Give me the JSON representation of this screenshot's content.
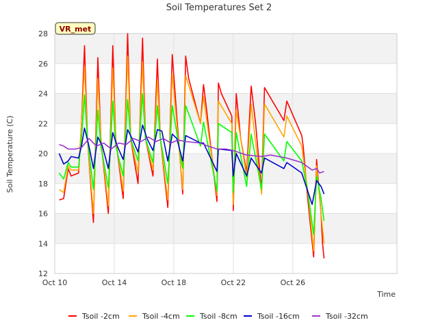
{
  "chart_data": {
    "type": "line",
    "title": "Soil Temperatures Set 2",
    "xlabel": "Time",
    "ylabel": "Soil Temperature (C)",
    "ylim": [
      12,
      28
    ],
    "xlim": [
      0,
      23
    ],
    "badge": "VR_met",
    "x_ticks": [
      {
        "x": 0,
        "label": "Oct 10"
      },
      {
        "x": 4,
        "label": "Oct 14"
      },
      {
        "x": 8,
        "label": "Oct 18"
      },
      {
        "x": 12,
        "label": "Oct 22"
      },
      {
        "x": 16,
        "label": "Oct 26"
      }
    ],
    "y_ticks": [
      12,
      14,
      16,
      18,
      20,
      22,
      24,
      26,
      28
    ],
    "grid": true,
    "background_bands": "alternating grey/white",
    "legend_position": "bottom",
    "series": [
      {
        "name": "Tsoil -2cm",
        "color": "#ff0000",
        "points": [
          [
            0.3,
            16.9
          ],
          [
            0.6,
            17.0
          ],
          [
            0.9,
            19.0
          ],
          [
            1.1,
            18.5
          ],
          [
            1.6,
            18.7
          ],
          [
            1.8,
            22.0
          ],
          [
            2.0,
            27.2
          ],
          [
            2.2,
            21.0
          ],
          [
            2.6,
            15.4
          ],
          [
            2.9,
            26.4
          ],
          [
            3.1,
            21.0
          ],
          [
            3.6,
            16.0
          ],
          [
            3.9,
            27.2
          ],
          [
            4.1,
            21.0
          ],
          [
            4.6,
            17.0
          ],
          [
            4.9,
            28.0
          ],
          [
            5.1,
            21.0
          ],
          [
            5.6,
            18.0
          ],
          [
            5.9,
            27.7
          ],
          [
            6.1,
            21.0
          ],
          [
            6.6,
            18.5
          ],
          [
            6.9,
            26.3
          ],
          [
            7.1,
            21.0
          ],
          [
            7.6,
            16.4
          ],
          [
            7.9,
            26.6
          ],
          [
            8.2,
            22.5
          ],
          [
            8.6,
            17.3
          ],
          [
            8.8,
            26.5
          ],
          [
            9.0,
            25.0
          ],
          [
            9.8,
            22.0
          ],
          [
            10.0,
            24.6
          ],
          [
            10.2,
            23.0
          ],
          [
            10.9,
            16.8
          ],
          [
            11.0,
            24.7
          ],
          [
            11.2,
            24.0
          ],
          [
            11.9,
            22.5
          ],
          [
            12.0,
            16.2
          ],
          [
            12.2,
            24.0
          ],
          [
            12.5,
            21.0
          ],
          [
            12.9,
            18.7
          ],
          [
            13.2,
            24.5
          ],
          [
            13.5,
            22.0
          ],
          [
            13.9,
            17.5
          ],
          [
            14.1,
            24.4
          ],
          [
            15.4,
            22.2
          ],
          [
            15.6,
            23.5
          ],
          [
            16.6,
            21.2
          ],
          [
            16.7,
            20.5
          ],
          [
            17.0,
            17.0
          ],
          [
            17.4,
            13.1
          ],
          [
            17.6,
            19.6
          ],
          [
            17.9,
            16.0
          ],
          [
            18.0,
            14.0
          ],
          [
            18.1,
            13.0
          ]
        ]
      },
      {
        "name": "Tsoil -4cm",
        "color": "#ffa500",
        "points": [
          [
            0.3,
            17.6
          ],
          [
            0.6,
            17.4
          ],
          [
            0.9,
            19.2
          ],
          [
            1.1,
            18.9
          ],
          [
            1.6,
            18.9
          ],
          [
            1.8,
            22.0
          ],
          [
            2.0,
            25.8
          ],
          [
            2.2,
            21.0
          ],
          [
            2.6,
            16.0
          ],
          [
            2.9,
            25.0
          ],
          [
            3.1,
            21.0
          ],
          [
            3.6,
            16.5
          ],
          [
            3.9,
            25.7
          ],
          [
            4.1,
            21.0
          ],
          [
            4.6,
            17.5
          ],
          [
            4.9,
            26.5
          ],
          [
            5.1,
            21.0
          ],
          [
            5.6,
            18.7
          ],
          [
            5.9,
            26.1
          ],
          [
            6.1,
            21.0
          ],
          [
            6.6,
            18.9
          ],
          [
            6.9,
            24.9
          ],
          [
            7.1,
            21.0
          ],
          [
            7.6,
            16.9
          ],
          [
            7.9,
            25.3
          ],
          [
            8.2,
            22.0
          ],
          [
            8.6,
            17.6
          ],
          [
            8.8,
            25.2
          ],
          [
            9.8,
            22.0
          ],
          [
            10.0,
            23.8
          ],
          [
            10.9,
            17.2
          ],
          [
            11.0,
            23.5
          ],
          [
            11.9,
            22.0
          ],
          [
            12.0,
            16.6
          ],
          [
            12.2,
            22.9
          ],
          [
            12.9,
            18.4
          ],
          [
            13.2,
            23.3
          ],
          [
            13.9,
            17.3
          ],
          [
            14.1,
            23.3
          ],
          [
            15.4,
            21.1
          ],
          [
            15.6,
            22.5
          ],
          [
            16.6,
            20.5
          ],
          [
            17.0,
            17.5
          ],
          [
            17.4,
            13.5
          ],
          [
            17.6,
            19.2
          ],
          [
            17.9,
            16.0
          ],
          [
            18.1,
            14.0
          ]
        ]
      },
      {
        "name": "Tsoil -8cm",
        "color": "#00ff00",
        "points": [
          [
            0.3,
            18.7
          ],
          [
            0.6,
            18.3
          ],
          [
            0.9,
            19.4
          ],
          [
            1.1,
            19.1
          ],
          [
            1.6,
            19.1
          ],
          [
            1.8,
            21.0
          ],
          [
            2.0,
            23.9
          ],
          [
            2.2,
            21.0
          ],
          [
            2.6,
            17.6
          ],
          [
            2.9,
            22.9
          ],
          [
            3.1,
            20.5
          ],
          [
            3.6,
            17.7
          ],
          [
            3.9,
            23.5
          ],
          [
            4.1,
            20.5
          ],
          [
            4.6,
            18.5
          ],
          [
            4.9,
            23.6
          ],
          [
            5.1,
            21.0
          ],
          [
            5.6,
            19.5
          ],
          [
            5.9,
            24.0
          ],
          [
            6.1,
            21.0
          ],
          [
            6.6,
            19.4
          ],
          [
            6.9,
            23.2
          ],
          [
            7.1,
            21.0
          ],
          [
            7.6,
            18.0
          ],
          [
            7.9,
            23.2
          ],
          [
            8.6,
            19.0
          ],
          [
            8.8,
            23.2
          ],
          [
            9.8,
            20.5
          ],
          [
            10.0,
            22.1
          ],
          [
            10.9,
            17.5
          ],
          [
            11.0,
            22.0
          ],
          [
            11.9,
            21.4
          ],
          [
            12.0,
            17.4
          ],
          [
            12.2,
            21.4
          ],
          [
            12.9,
            17.8
          ],
          [
            13.2,
            21.3
          ],
          [
            13.9,
            17.6
          ],
          [
            14.1,
            21.3
          ],
          [
            15.4,
            19.5
          ],
          [
            15.6,
            20.8
          ],
          [
            16.6,
            19.5
          ],
          [
            17.0,
            17.5
          ],
          [
            17.4,
            14.6
          ],
          [
            17.6,
            18.5
          ],
          [
            17.9,
            17.0
          ],
          [
            18.1,
            15.5
          ]
        ]
      },
      {
        "name": "Tsoil -16cm",
        "color": "#0000cc",
        "points": [
          [
            0.3,
            20.0
          ],
          [
            0.6,
            19.3
          ],
          [
            0.9,
            19.5
          ],
          [
            1.1,
            19.8
          ],
          [
            1.6,
            19.7
          ],
          [
            1.8,
            20.5
          ],
          [
            2.0,
            21.7
          ],
          [
            2.3,
            20.5
          ],
          [
            2.6,
            19.0
          ],
          [
            2.9,
            21.1
          ],
          [
            3.2,
            20.5
          ],
          [
            3.6,
            19.0
          ],
          [
            3.9,
            21.4
          ],
          [
            4.2,
            20.5
          ],
          [
            4.6,
            19.6
          ],
          [
            4.9,
            21.6
          ],
          [
            5.2,
            21.0
          ],
          [
            5.6,
            20.1
          ],
          [
            5.9,
            21.9
          ],
          [
            6.2,
            21.0
          ],
          [
            6.6,
            20.2
          ],
          [
            6.9,
            21.6
          ],
          [
            7.2,
            21.5
          ],
          [
            7.6,
            19.5
          ],
          [
            7.9,
            21.3
          ],
          [
            8.2,
            21.0
          ],
          [
            8.6,
            19.5
          ],
          [
            8.8,
            21.2
          ],
          [
            9.8,
            20.7
          ],
          [
            10.0,
            20.7
          ],
          [
            10.9,
            18.8
          ],
          [
            11.0,
            20.3
          ],
          [
            11.9,
            20.2
          ],
          [
            12.0,
            18.5
          ],
          [
            12.2,
            20.0
          ],
          [
            12.9,
            18.5
          ],
          [
            13.2,
            19.7
          ],
          [
            13.9,
            18.7
          ],
          [
            14.1,
            19.7
          ],
          [
            15.4,
            19.0
          ],
          [
            15.6,
            19.4
          ],
          [
            16.6,
            18.7
          ],
          [
            17.3,
            16.6
          ],
          [
            17.6,
            18.2
          ],
          [
            17.9,
            17.8
          ],
          [
            18.1,
            17.3
          ]
        ]
      },
      {
        "name": "Tsoil -32cm",
        "color": "#9932cc",
        "points": [
          [
            0.3,
            20.6
          ],
          [
            0.6,
            20.5
          ],
          [
            0.9,
            20.3
          ],
          [
            1.4,
            20.3
          ],
          [
            1.8,
            20.4
          ],
          [
            2.3,
            21.0
          ],
          [
            2.8,
            20.5
          ],
          [
            3.3,
            20.7
          ],
          [
            3.8,
            20.3
          ],
          [
            4.3,
            20.7
          ],
          [
            4.8,
            20.6
          ],
          [
            5.3,
            21.0
          ],
          [
            5.8,
            20.8
          ],
          [
            6.3,
            21.1
          ],
          [
            6.8,
            20.8
          ],
          [
            7.3,
            21.0
          ],
          [
            7.8,
            20.7
          ],
          [
            8.3,
            20.9
          ],
          [
            8.8,
            20.8
          ],
          [
            9.8,
            20.7
          ],
          [
            10.3,
            20.5
          ],
          [
            10.9,
            20.3
          ],
          [
            11.5,
            20.3
          ],
          [
            12.0,
            20.2
          ],
          [
            12.9,
            19.9
          ],
          [
            13.9,
            19.8
          ],
          [
            14.5,
            19.9
          ],
          [
            15.6,
            19.7
          ],
          [
            16.6,
            19.4
          ],
          [
            17.3,
            18.9
          ],
          [
            17.6,
            19.0
          ],
          [
            17.8,
            18.7
          ],
          [
            18.1,
            18.8
          ]
        ]
      }
    ]
  }
}
